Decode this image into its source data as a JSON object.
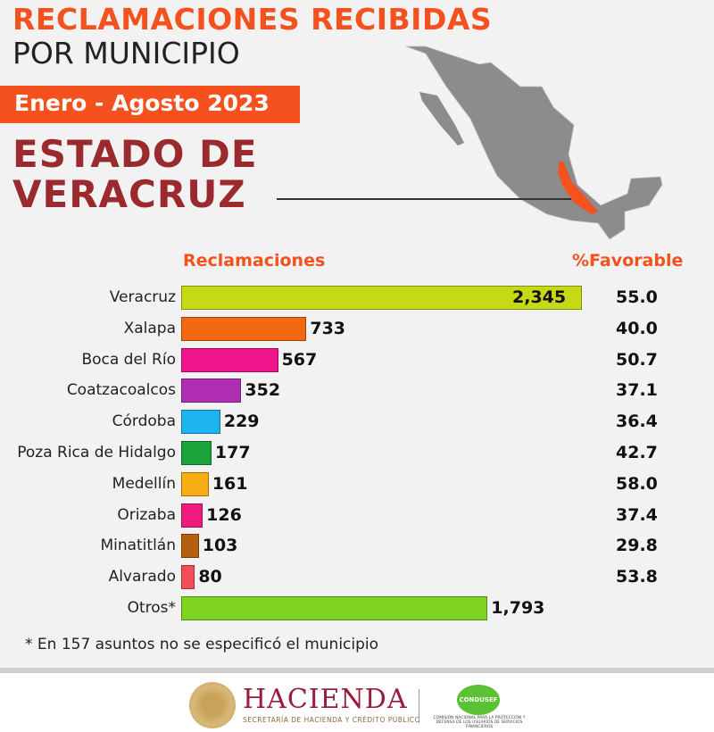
{
  "header": {
    "title_line1": "RECLAMACIONES RECIBIDAS",
    "title_line2": "POR MUNICIPIO",
    "period": "Enero - Agosto 2023",
    "state_line1": "ESTADO DE",
    "state_line2": "VERACRUZ"
  },
  "colors": {
    "accent": "#f4511e",
    "state_title": "#9b2a2f",
    "map_gray": "#8c8c8c",
    "map_highlight": "#f4511e"
  },
  "chart_data": {
    "type": "bar",
    "orientation": "horizontal",
    "column_headers": {
      "bars": "Reclamaciones",
      "percent": "%Favorable"
    },
    "categories": [
      "Veracruz",
      "Xalapa",
      "Boca del Río",
      "Coatzacoalcos",
      "Córdoba",
      "Poza Rica de Hidalgo",
      "Medellín",
      "Orizaba",
      "Minatitlán",
      "Alvarado",
      "Otros*"
    ],
    "values": [
      2345,
      733,
      567,
      352,
      229,
      177,
      161,
      126,
      103,
      80,
      1793
    ],
    "value_labels": [
      "2,345",
      "733",
      "567",
      "352",
      "229",
      "177",
      "161",
      "126",
      "103",
      "80",
      "1,793"
    ],
    "percent_favorable": [
      "55.0",
      "40.0",
      "50.7",
      "37.1",
      "36.4",
      "42.7",
      "58.0",
      "37.4",
      "29.8",
      "53.8",
      ""
    ],
    "bar_colors": [
      "#c6d915",
      "#f26a0f",
      "#f0148c",
      "#b02eb4",
      "#20b4ee",
      "#1da33c",
      "#f8ad14",
      "#ee1a7c",
      "#b5600f",
      "#f24e5a",
      "#7ed321"
    ],
    "grid": false
  },
  "footnote": "* En 157 asuntos no se especificó el municipio",
  "footer": {
    "hacienda": "HACIENDA",
    "hacienda_sub": "SECRETARÍA DE HACIENDA Y CRÉDITO PÚBLICO",
    "condusef": "CONDUSEF",
    "condusef_sub": "COMISIÓN NACIONAL PARA LA PROTECCIÓN Y DEFENSA DE LOS USUARIOS DE SERVICIOS FINANCIEROS"
  }
}
